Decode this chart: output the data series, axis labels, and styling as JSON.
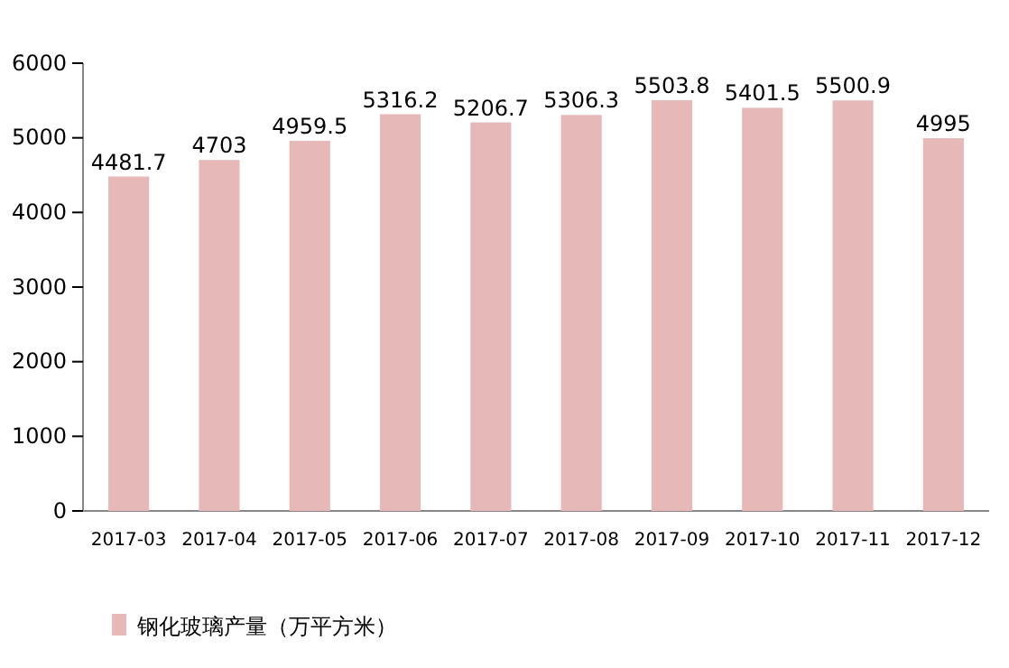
{
  "chart_data": {
    "type": "bar",
    "categories": [
      "2017-03",
      "2017-04",
      "2017-05",
      "2017-06",
      "2017-07",
      "2017-08",
      "2017-09",
      "2017-10",
      "2017-11",
      "2017-12"
    ],
    "series": [
      {
        "name": "钢化玻璃产量（万平方米）",
        "color": "#e6b9b8",
        "values": [
          4481.7,
          4703,
          4959.5,
          5316.2,
          5206.7,
          5306.3,
          5503.8,
          5401.5,
          5500.9,
          4995
        ]
      }
    ],
    "ylim": [
      0,
      6000
    ],
    "yticks": [
      0,
      1000,
      2000,
      3000,
      4000,
      5000,
      6000
    ],
    "data_labels": true,
    "legend": "bottom",
    "grid": false
  }
}
